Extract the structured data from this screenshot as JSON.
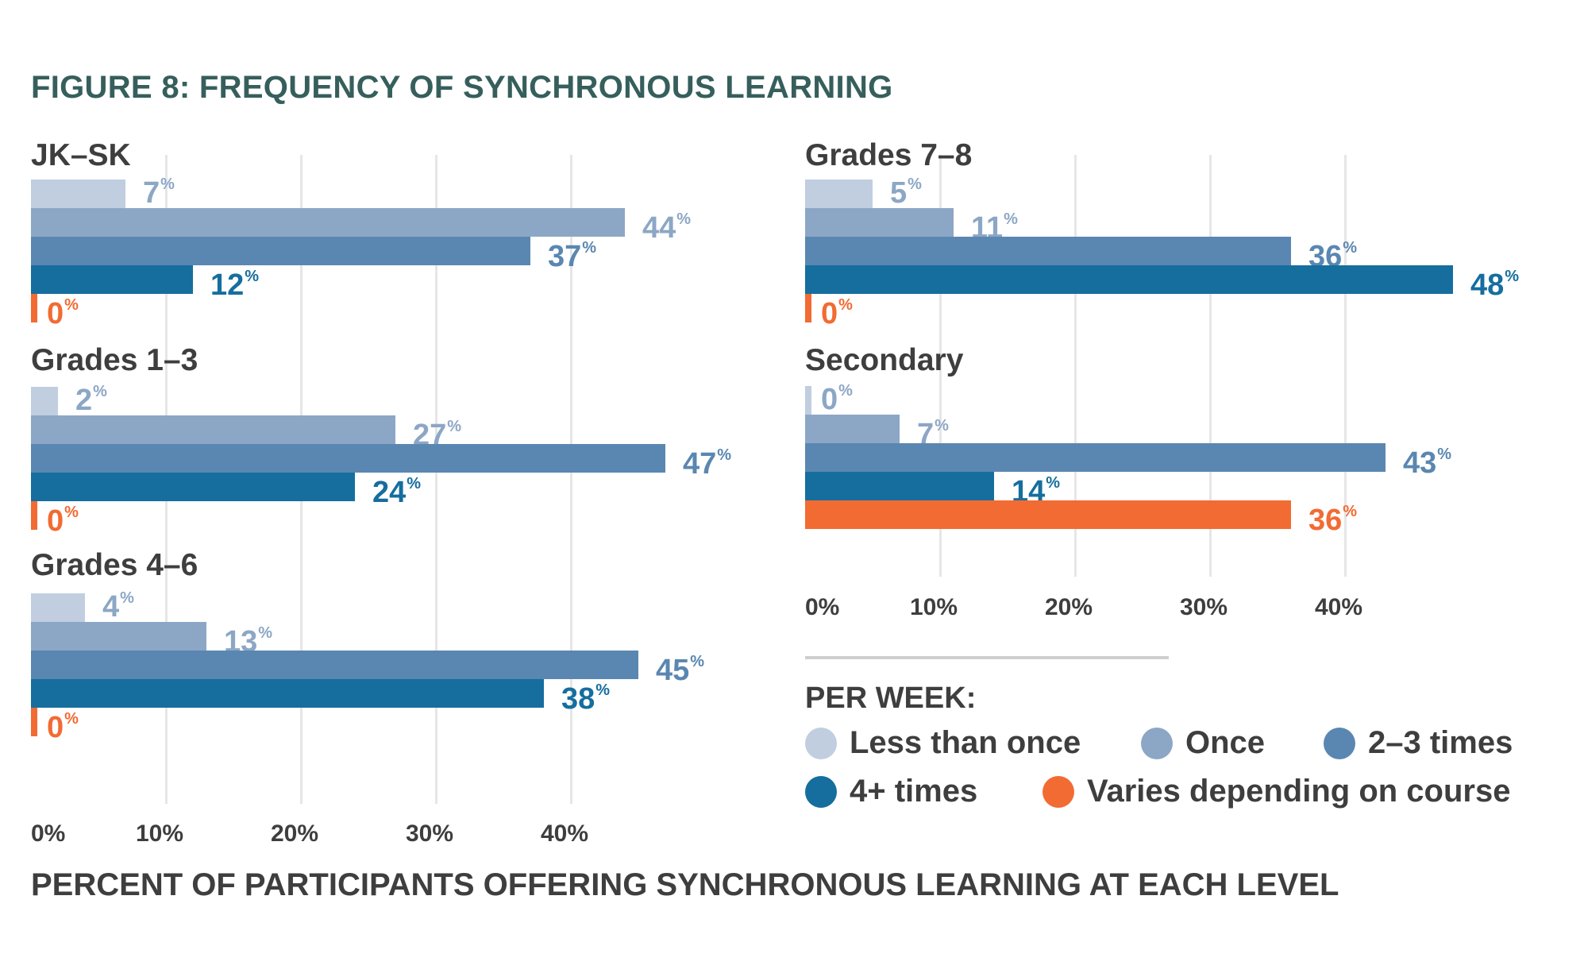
{
  "title": "FIGURE 8: FREQUENCY OF SYNCHRONOUS LEARNING",
  "axis_title": "PERCENT OF PARTICIPANTS OFFERING SYNCHRONOUS LEARNING AT EACH LEVEL",
  "legend": {
    "heading": "PER WEEK:",
    "items": [
      {
        "label": "Less than once",
        "color": "#c1cee0"
      },
      {
        "label": "Once",
        "color": "#8ca7c5"
      },
      {
        "label": "2–3 times",
        "color": "#5a87b1"
      },
      {
        "label": "4+ times",
        "color": "#156e9e"
      },
      {
        "label": "Varies depending on course",
        "color": "#f26b33"
      }
    ]
  },
  "label_colors": [
    "#8ca7c5",
    "#8ca7c5",
    "#5a87b1",
    "#156e9e",
    "#f26b33"
  ],
  "chart_data": {
    "type": "bar",
    "orientation": "horizontal",
    "title": "FIGURE 8: FREQUENCY OF SYNCHRONOUS LEARNING",
    "xlabel": "PERCENT OF PARTICIPANTS OFFERING SYNCHRONOUS LEARNING AT EACH LEVEL",
    "ylabel": "",
    "xlim": [
      0,
      50
    ],
    "x_ticks": [
      "0%",
      "10%",
      "20%",
      "30%",
      "40%"
    ],
    "x_tick_values": [
      0,
      10,
      20,
      30,
      40
    ],
    "grid": true,
    "legend_position": "bottom-right",
    "value_suffix": "%",
    "series_names": [
      "Less than once",
      "Once",
      "2–3 times",
      "4+ times",
      "Varies depending on course"
    ],
    "panels": [
      {
        "name": "JK–SK",
        "values": [
          7,
          44,
          37,
          12,
          0
        ]
      },
      {
        "name": "Grades 1–3",
        "values": [
          2,
          27,
          47,
          24,
          0
        ]
      },
      {
        "name": "Grades 4–6",
        "values": [
          4,
          13,
          45,
          38,
          0
        ]
      },
      {
        "name": "Grades 7–8",
        "values": [
          5,
          11,
          36,
          48,
          0
        ]
      },
      {
        "name": "Secondary",
        "values": [
          0,
          7,
          43,
          14,
          36
        ]
      }
    ]
  }
}
